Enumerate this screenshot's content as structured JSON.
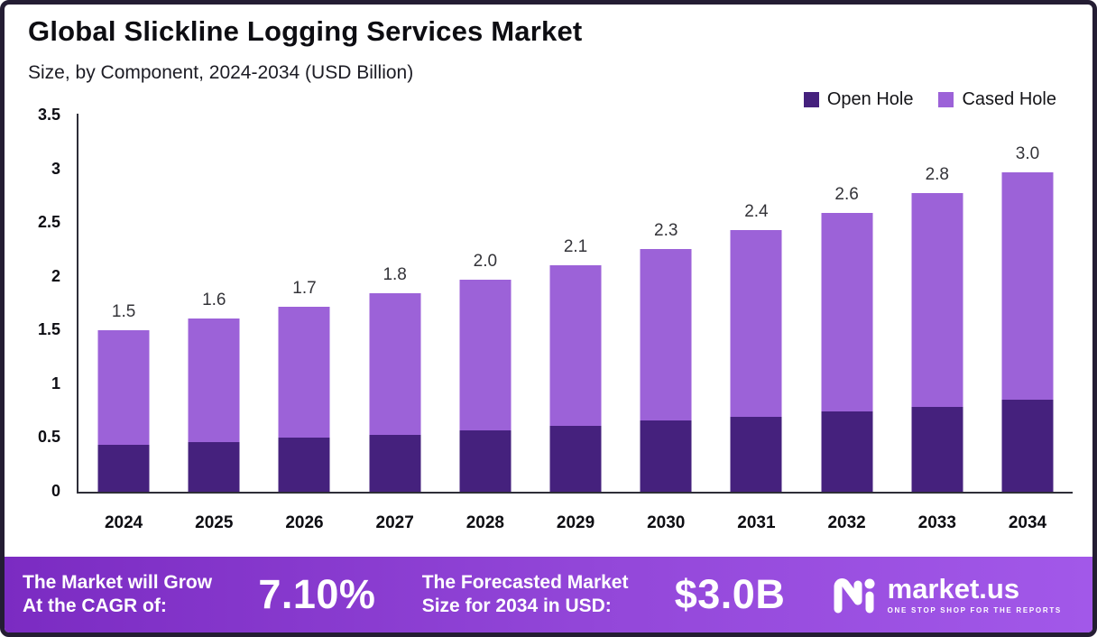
{
  "title": "Global Slickline Logging Services Market",
  "subtitle": "Size, by Component, 2024-2034 (USD Billion)",
  "colors": {
    "open_hole": "#45217d",
    "cased_hole": "#9c62d8",
    "axis": "#2e2e38",
    "footer_gradient_start": "#7b2bc2",
    "footer_gradient_end": "#a258e9",
    "frame_border": "#241d33"
  },
  "chart_data": {
    "type": "bar",
    "stacked": true,
    "title": "Global Slickline Logging Services Market",
    "subtitle": "Size, by Component, 2024-2034 (USD Billion)",
    "xlabel": "",
    "ylabel": "USD Billion",
    "ylim": [
      0,
      3.5
    ],
    "yticks": [
      "3.5",
      "3",
      "2.5",
      "2",
      "1.5",
      "1",
      "0.5",
      "0"
    ],
    "grid": false,
    "legend_position": "top-right",
    "categories": [
      "2024",
      "2025",
      "2026",
      "2027",
      "2028",
      "2029",
      "2030",
      "2031",
      "2032",
      "2033",
      "2034"
    ],
    "series": [
      {
        "name": "Open Hole",
        "color": "#45217d",
        "values": [
          0.44,
          0.46,
          0.5,
          0.53,
          0.57,
          0.61,
          0.66,
          0.7,
          0.75,
          0.79,
          0.86
        ]
      },
      {
        "name": "Cased Hole",
        "color": "#9c62d8",
        "values": [
          1.06,
          1.15,
          1.22,
          1.32,
          1.4,
          1.5,
          1.6,
          1.73,
          1.84,
          1.99,
          2.11
        ]
      }
    ],
    "totals_labels": [
      "1.5",
      "1.6",
      "1.7",
      "1.8",
      "2.0",
      "2.1",
      "2.3",
      "2.4",
      "2.6",
      "2.8",
      "3.0"
    ]
  },
  "footer": {
    "cagr_text_line1": "The Market will Grow",
    "cagr_text_line2": "At the CAGR of:",
    "cagr_value": "7.10%",
    "forecast_text_line1": "The Forecasted Market",
    "forecast_text_line2": "Size for 2034 in USD:",
    "forecast_value": "$3.0B",
    "brand": "market.us",
    "brand_tagline": "ONE STOP SHOP FOR THE REPORTS"
  }
}
